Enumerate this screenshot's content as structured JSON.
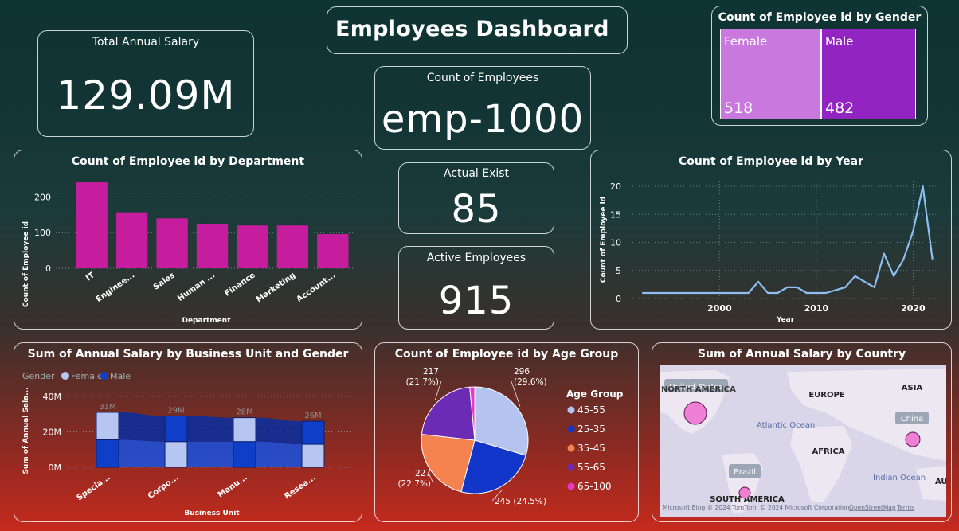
{
  "dashboard": {
    "title": "Employees Dashboard"
  },
  "kpis": {
    "total_salary": {
      "label": "Total Annual Salary",
      "value": "129.09M"
    },
    "employee_count": {
      "label": "Count of Employees",
      "value": "emp-1000"
    },
    "actual_exist": {
      "label": "Actual Exist",
      "value": "85"
    },
    "active_employees": {
      "label": "Active Employees",
      "value": "915"
    }
  },
  "colors": {
    "magenta": "#c61c9e",
    "female_tile": "#c978dd",
    "male_tile": "#9224c2",
    "line": "#8fbff2",
    "female_series": "#b7c6f0",
    "male_series": "#0f3fc8"
  },
  "chart_data": [
    {
      "id": "gender",
      "type": "treemap",
      "title": "Count of Employee id by Gender",
      "categories": [
        "Female",
        "Male"
      ],
      "values": [
        518,
        482
      ]
    },
    {
      "id": "department",
      "type": "bar",
      "title": "Count of Employee id by Department",
      "xlabel": "Department",
      "ylabel": "Count of Employee id",
      "categories": [
        "IT",
        "Enginee...",
        "Sales",
        "Human ...",
        "Finance",
        "Marketing",
        "Account..."
      ],
      "values": [
        241,
        157,
        140,
        125,
        120,
        120,
        96
      ],
      "ylim": [
        0,
        250
      ],
      "yticks": [
        0,
        100,
        200
      ],
      "grid": true
    },
    {
      "id": "year",
      "type": "line",
      "title": "Count of Employee id by Year",
      "xlabel": "Year",
      "ylabel": "Count of Employee id",
      "x": [
        1992,
        1993,
        1994,
        1995,
        1996,
        1997,
        1998,
        1999,
        2000,
        2001,
        2002,
        2003,
        2004,
        2005,
        2006,
        2007,
        2008,
        2009,
        2010,
        2011,
        2012,
        2013,
        2014,
        2015,
        2016,
        2017,
        2018,
        2019,
        2020,
        2021,
        2022
      ],
      "y": [
        1,
        1,
        1,
        1,
        1,
        1,
        1,
        1,
        1,
        1,
        1,
        1,
        3,
        1,
        1,
        2,
        2,
        1,
        1,
        1,
        1.5,
        2,
        4,
        3,
        2,
        8,
        4,
        7,
        12,
        20,
        7
      ],
      "xlim": [
        1991,
        2022.6
      ],
      "ylim": [
        0,
        21
      ],
      "xticks": [
        2000,
        2010,
        2020
      ],
      "yticks": [
        0,
        5,
        10,
        15,
        20
      ],
      "grid": true
    },
    {
      "id": "business_unit",
      "type": "ribbon",
      "title": "Sum of Annual Salary by Business Unit and Gender",
      "xlabel": "Business Unit",
      "ylabel": "Sum of Annual Sala...",
      "legend_title": "Gender",
      "categories": [
        "Specia...",
        "Corpo...",
        "Manu...",
        "Resea..."
      ],
      "total_labels": [
        "31M",
        "29M",
        "28M",
        "26M"
      ],
      "series": [
        {
          "name": "Female",
          "values": [
            15.5,
            14.5,
            14.5,
            13
          ]
        },
        {
          "name": "Male",
          "values": [
            15.5,
            14.5,
            13.5,
            13
          ]
        }
      ],
      "ylim": [
        0,
        44
      ],
      "yticks": [
        0,
        20,
        40
      ],
      "ytick_labels": [
        "0M",
        "20M",
        "40M"
      ],
      "grid": true
    },
    {
      "id": "age_group",
      "type": "pie",
      "title": "Count of Employee id by Age Group",
      "legend_title": "Age Group",
      "categories": [
        "45-55",
        "25-35",
        "35-45",
        "55-65",
        "65-100"
      ],
      "values": [
        296,
        245,
        227,
        217,
        15
      ],
      "data_labels": [
        "296 (29.6%)",
        "245 (24.5%)",
        "227 (22.7%)",
        "217 (21.7%)",
        ""
      ],
      "colors": [
        "#b5c4ee",
        "#1136c9",
        "#f5834f",
        "#6b2bb5",
        "#f036c6"
      ]
    },
    {
      "id": "country",
      "type": "map",
      "title": "Sum of Annual Salary by Country",
      "points": [
        {
          "label": "United States"
        },
        {
          "label": "China"
        },
        {
          "label": "Brazil"
        }
      ],
      "regions": [
        "NORTH AMERICA",
        "EUROPE",
        "ASIA",
        "AFRICA",
        "SOUTH AMERICA",
        "AUS"
      ],
      "oceans": [
        "Atlantic Ocean",
        "Indian Ocean"
      ],
      "attribution": "Microsoft Bing  © 2024 TomTom, © 2024 Microsoft Corporation",
      "links": [
        "OpenStreetMap",
        "Terms"
      ]
    }
  ]
}
